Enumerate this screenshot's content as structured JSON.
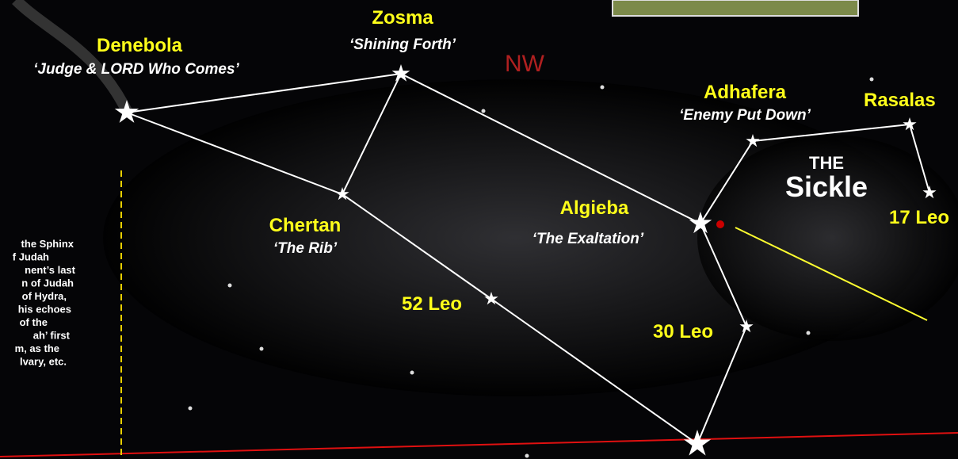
{
  "header": {
    "direction": "NW"
  },
  "stars": [
    {
      "name": "Denebola",
      "meaning": "‘Judge & LORD Who Comes’"
    },
    {
      "name": "Zosma",
      "meaning": "‘Shining Forth’"
    },
    {
      "name": "Chertan",
      "meaning": "‘The Rib’"
    },
    {
      "name": "Algieba",
      "meaning": "‘The Exaltation’"
    },
    {
      "name": "Adhafera",
      "meaning": "‘Enemy Put Down’"
    },
    {
      "name": "Rasalas"
    },
    {
      "name": "52 Leo"
    },
    {
      "name": "30 Leo"
    },
    {
      "name": "17 Leo"
    }
  ],
  "asterism": {
    "article": "THE",
    "name": "Sickle"
  },
  "side_note": {
    "lines": [
      "the Sphinx",
      "f Judah",
      "nent’s last",
      "n of Judah",
      "of Hydra,",
      "his echoes",
      "of the",
      "ah’ first",
      "m, as the",
      "lvary, etc."
    ]
  }
}
